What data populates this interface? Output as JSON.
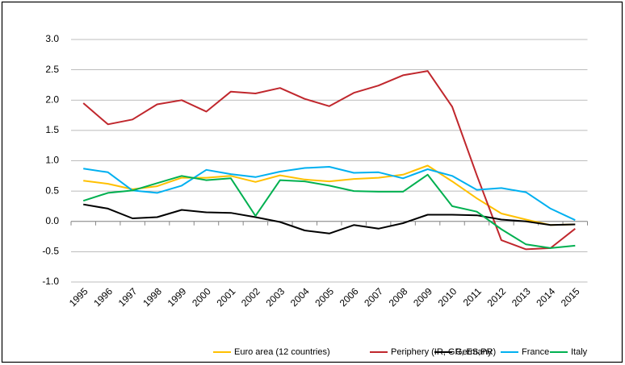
{
  "chart_data": {
    "type": "line",
    "categories": [
      "1995",
      "1996",
      "1997",
      "1998",
      "1999",
      "2000",
      "2001",
      "2002",
      "2003",
      "2004",
      "2005",
      "2006",
      "2007",
      "2008",
      "2009",
      "2010",
      "2011",
      "2012",
      "2013",
      "2014",
      "2015"
    ],
    "series": [
      {
        "name": "Euro area (12 countries)",
        "color": "#ffc000",
        "values": [
          0.67,
          0.62,
          0.53,
          0.58,
          0.72,
          0.72,
          0.75,
          0.65,
          0.76,
          0.69,
          0.66,
          0.7,
          0.72,
          0.77,
          0.92,
          0.66,
          0.38,
          0.13,
          0.03,
          -0.06,
          -0.05
        ]
      },
      {
        "name": "Periphery (IR, GR, ES,PR)",
        "color": "#c0272d",
        "values": [
          1.95,
          1.6,
          1.68,
          1.93,
          2.0,
          1.81,
          2.14,
          2.11,
          2.2,
          2.02,
          1.9,
          2.12,
          2.24,
          2.41,
          2.48,
          1.89,
          0.76,
          -0.31,
          -0.46,
          -0.44,
          -0.12
        ]
      },
      {
        "name": "Germany",
        "color": "#000000",
        "values": [
          0.28,
          0.21,
          0.05,
          0.07,
          0.19,
          0.15,
          0.14,
          0.07,
          -0.01,
          -0.15,
          -0.2,
          -0.06,
          -0.12,
          -0.03,
          0.11,
          0.11,
          0.1,
          0.03,
          0.0,
          -0.06,
          -0.05
        ]
      },
      {
        "name": "France",
        "color": "#00b0f0",
        "values": [
          0.87,
          0.81,
          0.51,
          0.47,
          0.59,
          0.85,
          0.78,
          0.73,
          0.82,
          0.88,
          0.9,
          0.8,
          0.81,
          0.71,
          0.86,
          0.75,
          0.52,
          0.55,
          0.48,
          0.21,
          0.02
        ]
      },
      {
        "name": "Italy",
        "color": "#00b050",
        "values": [
          0.34,
          0.47,
          0.51,
          0.63,
          0.75,
          0.68,
          0.71,
          0.09,
          0.68,
          0.66,
          0.59,
          0.5,
          0.49,
          0.49,
          0.77,
          0.25,
          0.16,
          -0.13,
          -0.38,
          -0.44,
          -0.4
        ]
      }
    ],
    "ylim": [
      -1,
      3
    ],
    "yticks": [
      {
        "value": -1,
        "label": "-1.0"
      },
      -0.5,
      {
        "value": 0,
        "label": "0.0"
      },
      0.5,
      {
        "value": 1,
        "label": "1.0"
      },
      1.5,
      {
        "value": 2,
        "label": "2.0"
      },
      2.5,
      {
        "value": 3,
        "label": "3.0"
      }
    ],
    "grid": true,
    "legend": "bottom"
  }
}
